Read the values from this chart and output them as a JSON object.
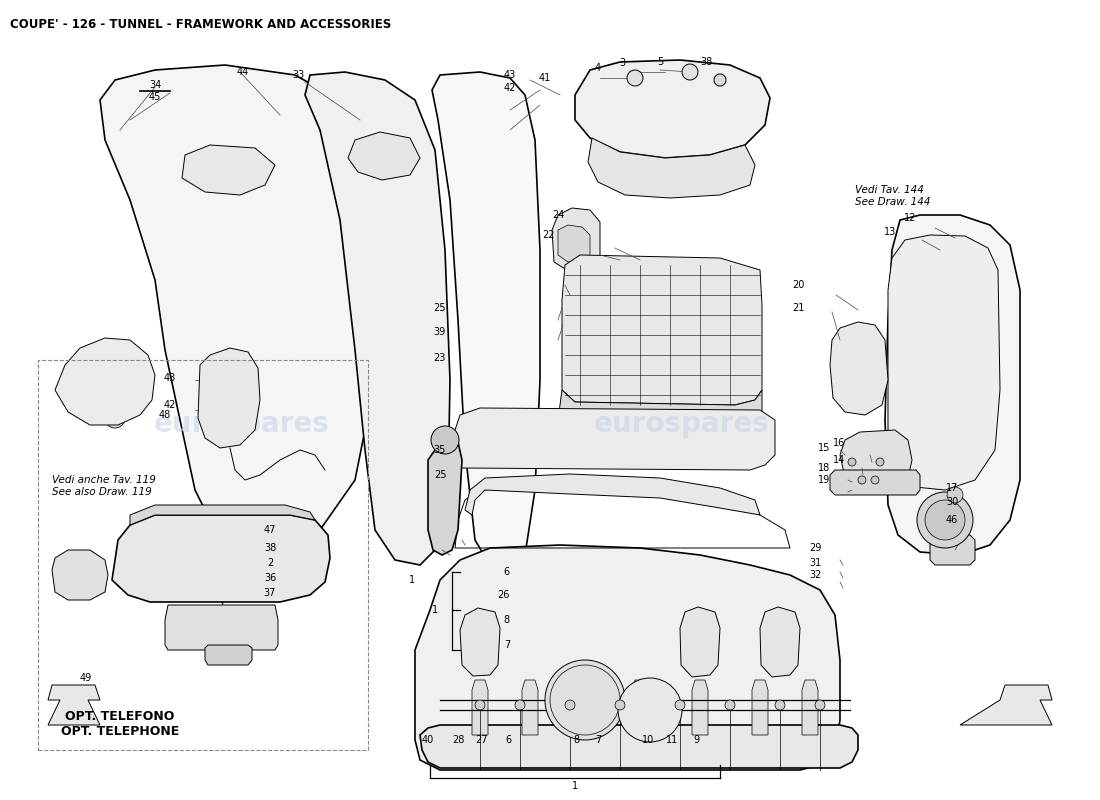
{
  "title": "COUPE' - 126 - TUNNEL - FRAMEWORK AND ACCESSORIES",
  "title_fontsize": 8.5,
  "title_fontweight": "bold",
  "bg_color": "#ffffff",
  "line_color": "#000000",
  "watermark1": "eurospares",
  "watermark2": "eurospares",
  "w1x": 0.22,
  "w1y": 0.47,
  "w2x": 0.62,
  "w2y": 0.47,
  "wcolor": "#c8d4e8",
  "walpha": 0.6,
  "wfontsize": 20,
  "vedi_tav": "Vedi Tav. 144\nSee Draw. 144",
  "vedi_anche": "Vedi anche Tav. 119\nSee also Draw. 119",
  "opt_text": "OPT. TELEFONO\nOPT. TELEPHONE",
  "note_fontsize": 7.5,
  "label_fontsize": 7,
  "fig_width": 11.0,
  "fig_height": 8.0,
  "dpi": 100
}
